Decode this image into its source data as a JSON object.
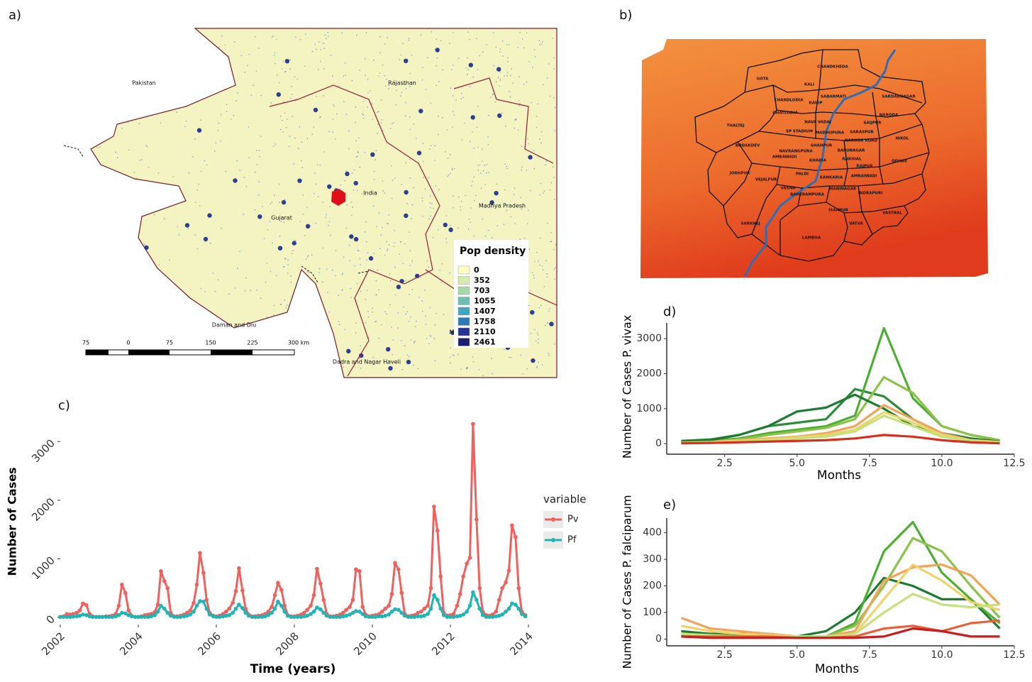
{
  "map_a": {
    "label": "a)",
    "places": [
      "Pakistan",
      "Rajasthan",
      "India",
      "Madhya Pradesh",
      "Gujarat",
      "Daman and Diu",
      "Dadra and Nagar Haveli",
      "M"
    ],
    "legend": {
      "title": "Pop density",
      "values": [
        0,
        352,
        703,
        1055,
        1407,
        1758,
        2110,
        2461
      ],
      "colors": [
        "#ffffc4",
        "#d5ecb0",
        "#a6d9a8",
        "#6cc0b2",
        "#41a6c0",
        "#2c7bb6",
        "#253494",
        "#1a1f70"
      ]
    },
    "scalebar": [
      75,
      0,
      75,
      150,
      225,
      {
        "value": 300,
        "label": "300 km"
      }
    ]
  },
  "map_b": {
    "label": "b)",
    "wards": [
      "CHANDKHEDA",
      "GOTA",
      "KALI",
      "SABARMATI",
      "SARDARNAGAR",
      "CHANDLODIA",
      "RANIP",
      "NARODA",
      "GHATLODIA",
      "THALTEJ",
      "NAVA VADAJ",
      "SAIJPUR",
      "NIKOL",
      "SP STADIUM",
      "MADHUPURA",
      "SARASPUR",
      "BODAKDEV",
      "NARODA ROAD",
      "SHAHPUR",
      "NAVRANGPURA",
      "RAKHIAL",
      "AMBAWADI",
      "KHADIA",
      "BAPUNAGAR",
      "RAJPUR",
      "ODHAV",
      "JODHPUR",
      "PALDI",
      "VEJALPUR",
      "KANKARIA",
      "AMRAIWADI",
      "VASNA",
      "MANINAGAR",
      "BAHERAMPURA",
      "INDRAPURI",
      "ISANPUR",
      "VASTRAL",
      "SARKHEJ",
      "VATVA",
      "LAMBHA"
    ]
  },
  "chart_data": [
    {
      "type": "line",
      "label": "c)",
      "xlabel": "Time (years)",
      "ylabel": "Number of Cases",
      "legend_title": "variable",
      "markers": true,
      "xlim": [
        2002,
        2014
      ],
      "xticks": [
        2002,
        2004,
        2006,
        2008,
        2010,
        2012,
        2014
      ],
      "ylim": [
        -120,
        3450
      ],
      "yticks": [
        0,
        1000,
        2000,
        3000
      ],
      "x": [
        2002,
        2002.08,
        2002.17,
        2002.25,
        2002.33,
        2002.42,
        2002.5,
        2002.58,
        2002.67,
        2002.75,
        2002.83,
        2002.92,
        2003,
        2003.08,
        2003.17,
        2003.25,
        2003.33,
        2003.42,
        2003.5,
        2003.58,
        2003.67,
        2003.75,
        2003.83,
        2003.92,
        2004,
        2004.08,
        2004.17,
        2004.25,
        2004.33,
        2004.42,
        2004.5,
        2004.58,
        2004.67,
        2004.75,
        2004.83,
        2004.92,
        2005,
        2005.08,
        2005.17,
        2005.25,
        2005.33,
        2005.42,
        2005.5,
        2005.58,
        2005.67,
        2005.75,
        2005.83,
        2005.92,
        2006,
        2006.08,
        2006.17,
        2006.25,
        2006.33,
        2006.42,
        2006.5,
        2006.58,
        2006.67,
        2006.75,
        2006.83,
        2006.92,
        2007,
        2007.08,
        2007.17,
        2007.25,
        2007.33,
        2007.42,
        2007.5,
        2007.58,
        2007.67,
        2007.75,
        2007.83,
        2007.92,
        2008,
        2008.08,
        2008.17,
        2008.25,
        2008.33,
        2008.42,
        2008.5,
        2008.58,
        2008.67,
        2008.75,
        2008.83,
        2008.92,
        2009,
        2009.08,
        2009.17,
        2009.25,
        2009.33,
        2009.42,
        2009.5,
        2009.58,
        2009.67,
        2009.75,
        2009.83,
        2009.92,
        2010,
        2010.08,
        2010.17,
        2010.25,
        2010.33,
        2010.42,
        2010.5,
        2010.58,
        2010.67,
        2010.75,
        2010.83,
        2010.92,
        2011,
        2011.08,
        2011.17,
        2011.25,
        2011.33,
        2011.42,
        2011.5,
        2011.58,
        2011.67,
        2011.75,
        2011.83,
        2011.92,
        2012,
        2012.08,
        2012.17,
        2012.25,
        2012.33,
        2012.42,
        2012.5,
        2012.58,
        2012.67,
        2012.75,
        2012.83,
        2012.92,
        2013,
        2013.08,
        2013.17,
        2013.25,
        2013.33,
        2013.42,
        2013.5,
        2013.58,
        2013.67,
        2013.75,
        2013.83,
        2013.92
      ],
      "series": [
        {
          "name": "Pv",
          "color": "#f0605d",
          "values": [
            10,
            20,
            60,
            50,
            60,
            80,
            120,
            240,
            210,
            60,
            20,
            10,
            10,
            10,
            20,
            20,
            30,
            60,
            200,
            560,
            420,
            120,
            30,
            10,
            10,
            20,
            40,
            50,
            60,
            90,
            220,
            790,
            620,
            500,
            80,
            20,
            20,
            30,
            50,
            80,
            120,
            250,
            560,
            1100,
            760,
            300,
            80,
            30,
            20,
            30,
            60,
            100,
            150,
            250,
            450,
            840,
            460,
            150,
            50,
            20,
            20,
            30,
            40,
            60,
            100,
            180,
            380,
            590,
            470,
            200,
            40,
            20,
            20,
            30,
            50,
            80,
            130,
            200,
            380,
            830,
            580,
            300,
            60,
            20,
            20,
            30,
            50,
            80,
            130,
            180,
            300,
            820,
            790,
            180,
            50,
            20,
            30,
            40,
            60,
            100,
            150,
            200,
            400,
            930,
            820,
            420,
            60,
            20,
            30,
            40,
            80,
            100,
            150,
            200,
            500,
            1890,
            1480,
            700,
            80,
            30,
            40,
            60,
            200,
            400,
            700,
            920,
            1020,
            3300,
            1670,
            500,
            100,
            40,
            30,
            50,
            100,
            300,
            500,
            600,
            800,
            1570,
            1370,
            500,
            100,
            40
          ]
        },
        {
          "name": "Pf",
          "color": "#1fb5b5",
          "values": [
            10,
            10,
            10,
            10,
            15,
            20,
            30,
            50,
            40,
            20,
            10,
            10,
            10,
            10,
            10,
            10,
            10,
            20,
            40,
            80,
            70,
            40,
            20,
            10,
            10,
            10,
            10,
            10,
            20,
            40,
            100,
            200,
            150,
            80,
            30,
            10,
            10,
            10,
            20,
            30,
            50,
            100,
            200,
            280,
            270,
            150,
            50,
            20,
            10,
            10,
            20,
            30,
            40,
            80,
            150,
            220,
            160,
            80,
            30,
            10,
            10,
            10,
            10,
            20,
            40,
            80,
            150,
            270,
            200,
            100,
            30,
            10,
            10,
            10,
            10,
            20,
            30,
            60,
            100,
            170,
            140,
            80,
            30,
            10,
            10,
            10,
            10,
            20,
            30,
            50,
            80,
            110,
            100,
            60,
            20,
            10,
            10,
            10,
            20,
            20,
            30,
            50,
            100,
            140,
            130,
            80,
            30,
            10,
            10,
            10,
            20,
            20,
            30,
            60,
            150,
            380,
            300,
            150,
            40,
            10,
            10,
            10,
            20,
            30,
            50,
            100,
            200,
            430,
            300,
            150,
            40,
            10,
            10,
            10,
            20,
            30,
            50,
            100,
            150,
            240,
            220,
            150,
            60,
            20
          ]
        }
      ]
    },
    {
      "type": "line",
      "label": "d)",
      "xlabel": "Months",
      "ylabel": "Number of Cases P. vivax",
      "axis_lines": true,
      "xlim": [
        0.5,
        12.5
      ],
      "xticks": [
        2.5,
        {
          "value": 5,
          "label": "5.0"
        },
        7.5,
        {
          "value": 10,
          "label": "10.0"
        },
        12.5
      ],
      "ylim": [
        -300,
        3450
      ],
      "yticks": [
        0,
        1000,
        2000,
        3000
      ],
      "x": [
        1,
        2,
        3,
        4,
        5,
        6,
        7,
        8,
        9,
        10,
        11,
        12
      ],
      "series": [
        {
          "color": "#2e8b3a",
          "values": [
            80,
            120,
            250,
            500,
            600,
            700,
            1560,
            1350,
            700,
            300,
            150,
            60
          ]
        },
        {
          "color": "#4caf32",
          "values": [
            50,
            80,
            150,
            300,
            400,
            500,
            800,
            3300,
            1300,
            500,
            250,
            100
          ]
        },
        {
          "color": "#8bc34a",
          "values": [
            40,
            60,
            120,
            250,
            350,
            450,
            700,
            1900,
            1450,
            500,
            250,
            100
          ]
        },
        {
          "color": "#1e7b34",
          "values": [
            60,
            100,
            250,
            500,
            920,
            1030,
            1400,
            1000,
            500,
            300,
            150,
            60
          ]
        },
        {
          "color": "#f4a35a",
          "values": [
            30,
            50,
            100,
            150,
            200,
            300,
            500,
            1100,
            700,
            300,
            100,
            50
          ]
        },
        {
          "color": "#e8d86a",
          "values": [
            20,
            40,
            80,
            120,
            180,
            250,
            400,
            900,
            600,
            250,
            100,
            40
          ]
        },
        {
          "color": "#c6e07a",
          "values": [
            20,
            30,
            60,
            100,
            150,
            200,
            350,
            800,
            500,
            200,
            80,
            30
          ]
        },
        {
          "color": "#d7301f",
          "values": [
            10,
            20,
            40,
            60,
            80,
            100,
            150,
            250,
            200,
            100,
            40,
            10
          ]
        }
      ]
    },
    {
      "type": "line",
      "label": "e)",
      "xlabel": "Months",
      "ylabel": "Number of Cases P. falciparum",
      "axis_lines": true,
      "xlim": [
        0.5,
        12.5
      ],
      "xticks": [
        2.5,
        {
          "value": 5,
          "label": "5.0"
        },
        7.5,
        {
          "value": 10,
          "label": "10.0"
        },
        12.5
      ],
      "ylim": [
        -25,
        455
      ],
      "yticks": [
        0,
        100,
        200,
        300,
        400
      ],
      "x": [
        1,
        2,
        3,
        4,
        5,
        6,
        7,
        8,
        9,
        10,
        11,
        12
      ],
      "series": [
        {
          "color": "#1e7b34",
          "values": [
            30,
            20,
            20,
            20,
            10,
            30,
            100,
            230,
            200,
            150,
            150,
            40
          ]
        },
        {
          "color": "#4caf32",
          "values": [
            20,
            15,
            15,
            15,
            10,
            10,
            60,
            330,
            440,
            250,
            150,
            60
          ]
        },
        {
          "color": "#8bc34a",
          "values": [
            15,
            10,
            10,
            10,
            10,
            10,
            50,
            200,
            380,
            330,
            200,
            80
          ]
        },
        {
          "color": "#f4a35a",
          "values": [
            80,
            40,
            30,
            20,
            10,
            10,
            30,
            220,
            270,
            280,
            240,
            130
          ]
        },
        {
          "color": "#f2d36b",
          "values": [
            50,
            30,
            20,
            15,
            10,
            10,
            20,
            150,
            280,
            220,
            140,
            110
          ]
        },
        {
          "color": "#c6e07a",
          "values": [
            20,
            15,
            10,
            10,
            10,
            10,
            20,
            100,
            170,
            130,
            120,
            130
          ]
        },
        {
          "color": "#e8603c",
          "values": [
            10,
            10,
            10,
            10,
            5,
            5,
            10,
            40,
            50,
            30,
            60,
            70
          ]
        },
        {
          "color": "#c81e1e",
          "values": [
            10,
            5,
            5,
            5,
            5,
            5,
            5,
            10,
            40,
            30,
            10,
            10
          ]
        }
      ]
    }
  ]
}
